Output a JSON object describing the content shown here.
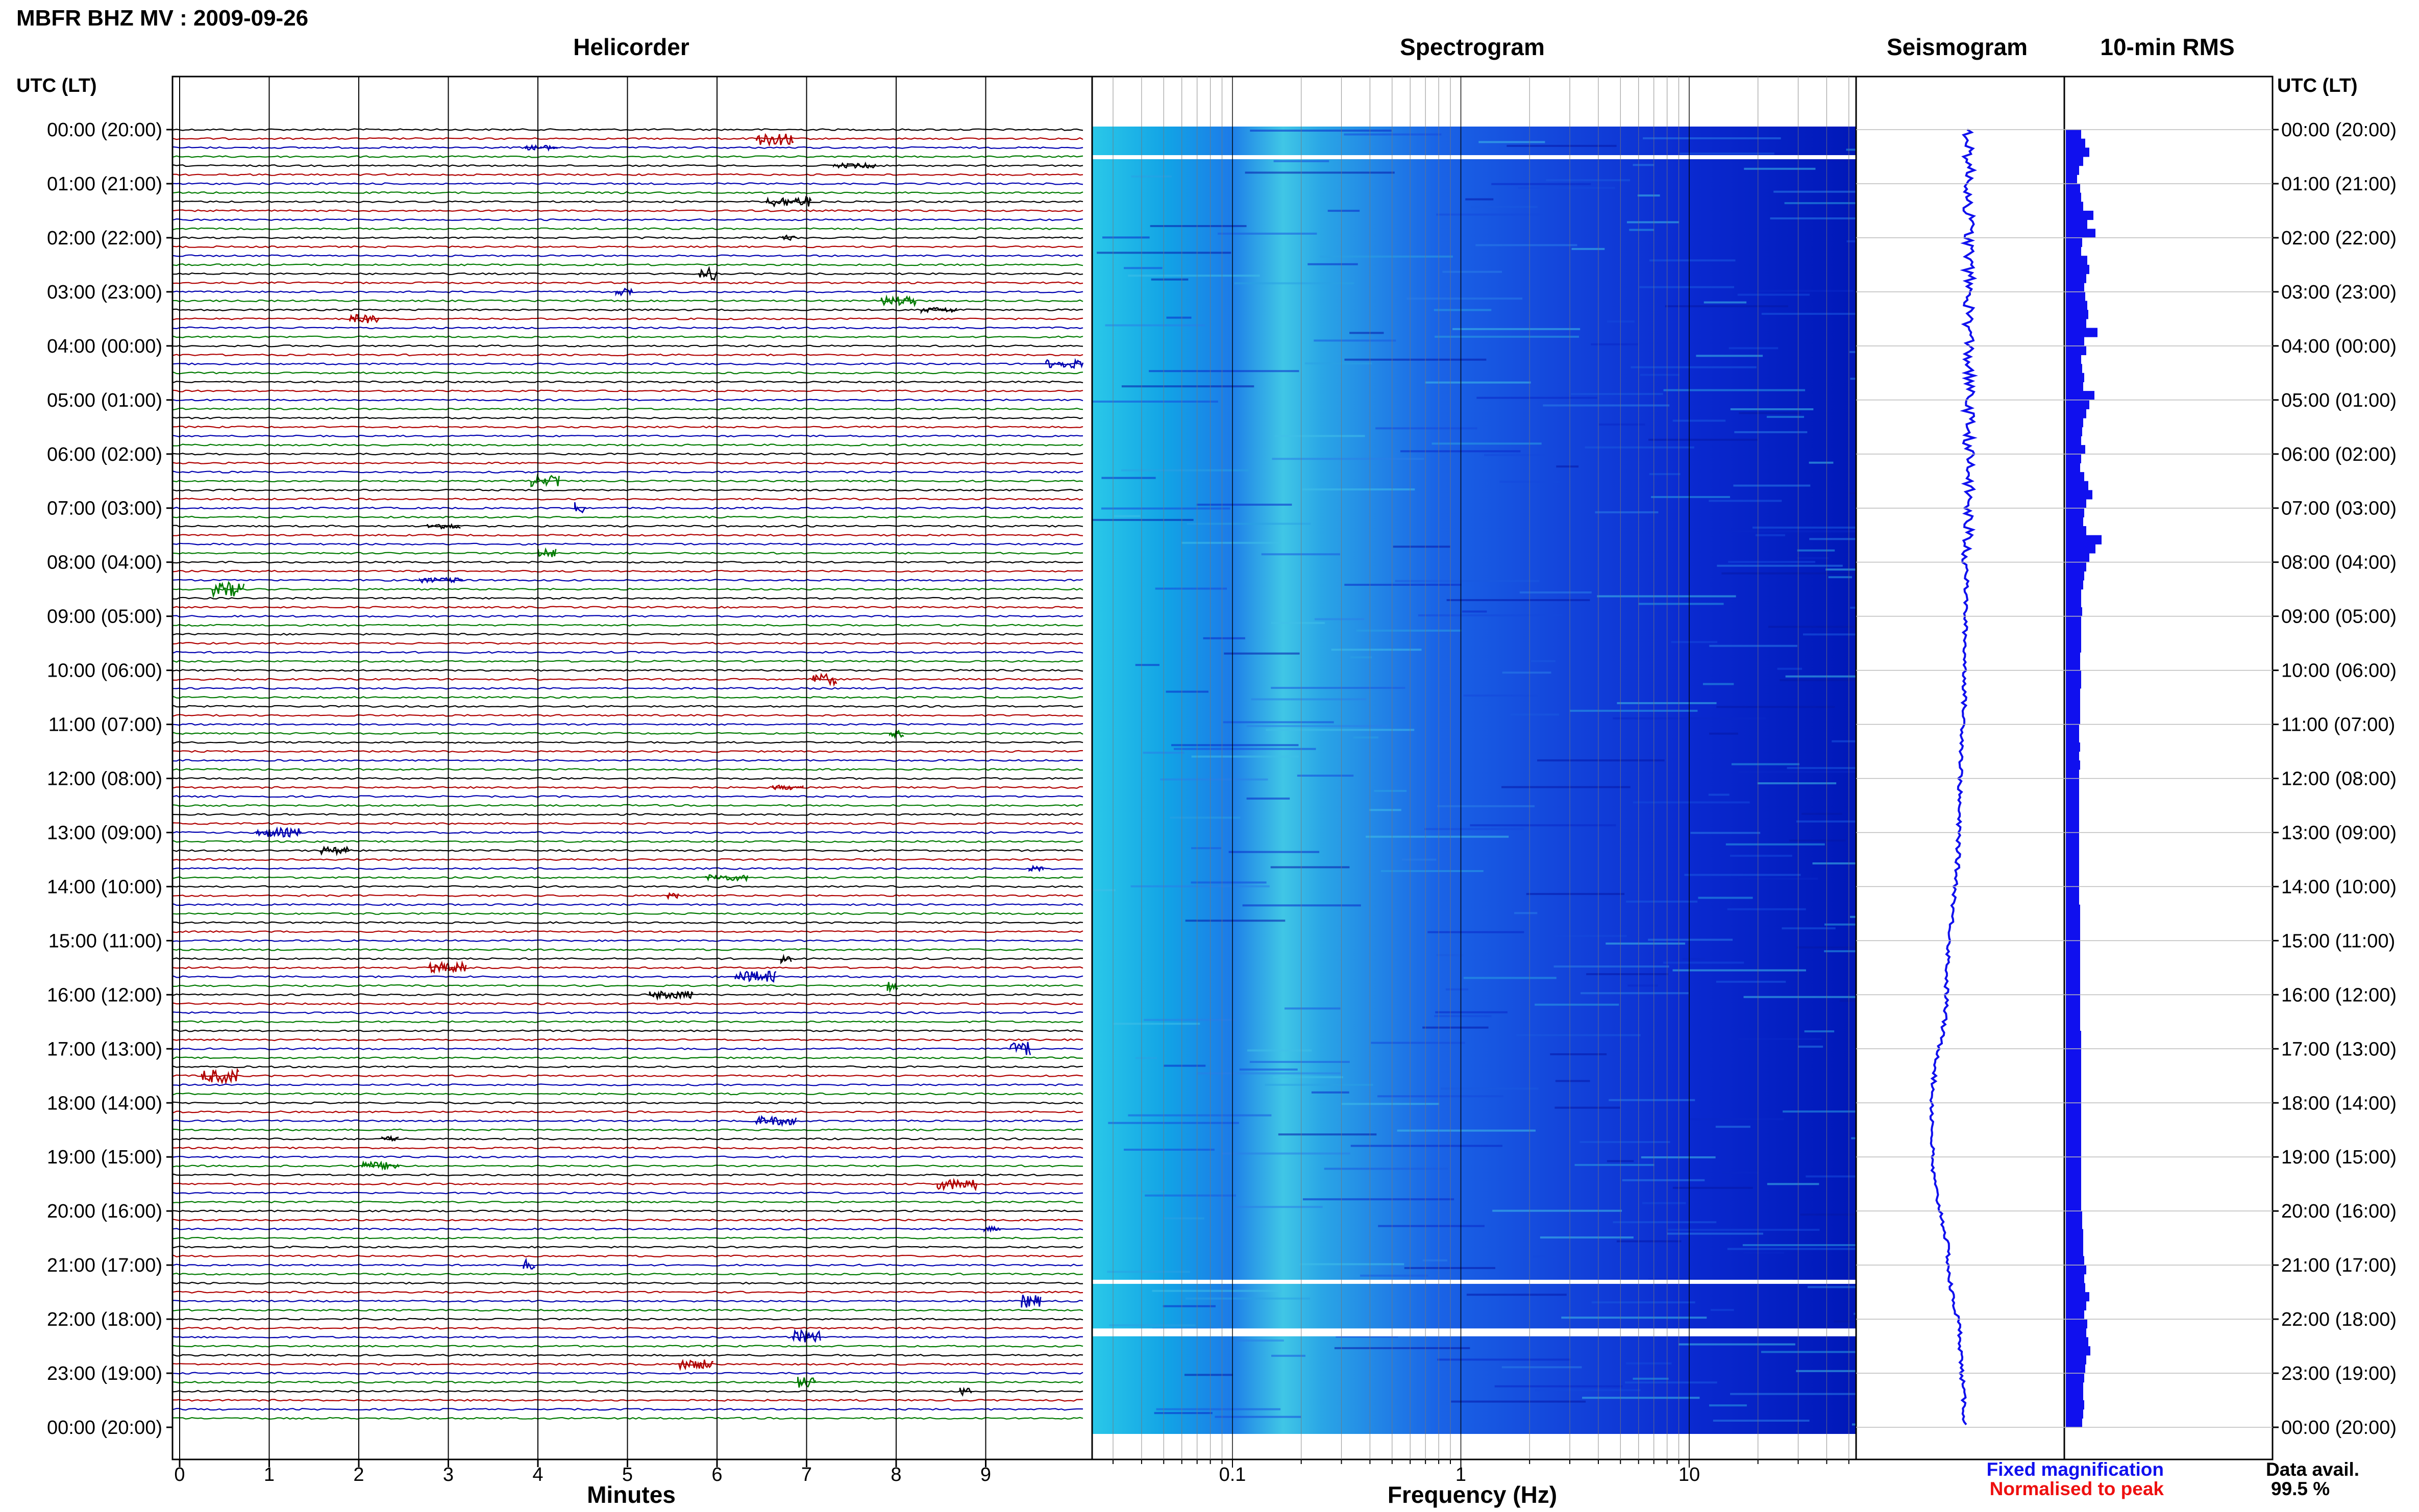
{
  "header": {
    "station_title": "MBFR BHZ MV : 2009-09-26",
    "utc_label": "UTC (LT)"
  },
  "panels": {
    "helicorder": "Helicorder",
    "spectrogram": "Spectrogram",
    "seismogram": "Seismogram",
    "rms": "10-min RMS"
  },
  "x_axes": {
    "helicorder_label": "Minutes",
    "spectrogram_label": "Frequency (Hz)"
  },
  "legend": {
    "fixed": "Fixed magnification",
    "normalised": "Normalised to peak",
    "avail_label": "Data avail.",
    "avail_value": "99.5 %"
  },
  "colors": {
    "fixed": "#1010ee",
    "normalised": "#ee1010",
    "trace_cycle": [
      "#000000",
      "#b00000",
      "#0000b0",
      "#007a00"
    ]
  },
  "chart_data": {
    "type": "helicorder",
    "time_ticks": [
      "00:00 (20:00)",
      "01:00 (21:00)",
      "02:00 (22:00)",
      "03:00 (23:00)",
      "04:00 (00:00)",
      "05:00 (01:00)",
      "06:00 (02:00)",
      "07:00 (03:00)",
      "08:00 (04:00)",
      "09:00 (05:00)",
      "10:00 (06:00)",
      "11:00 (07:00)",
      "12:00 (08:00)",
      "13:00 (09:00)",
      "14:00 (10:00)",
      "15:00 (11:00)",
      "16:00 (12:00)",
      "17:00 (13:00)",
      "18:00 (14:00)",
      "19:00 (15:00)",
      "20:00 (16:00)",
      "21:00 (17:00)",
      "22:00 (18:00)",
      "23:00 (19:00)",
      "00:00 (20:00)"
    ],
    "minute_ticks": [
      "0",
      "1",
      "2",
      "3",
      "4",
      "5",
      "6",
      "7",
      "8",
      "9"
    ],
    "minute_range": [
      0,
      10
    ],
    "frequency_ticks": [
      "0.1",
      "1",
      "10"
    ],
    "frequency_range_hz": [
      0.02,
      50
    ],
    "log_frequency": true,
    "hours": 24,
    "traces_per_hour": 6,
    "seismogram_drift": [
      {
        "hour": 0,
        "offset": 0.1
      },
      {
        "hour": 6,
        "offset": 0.1
      },
      {
        "hour": 10,
        "offset": 0.0
      },
      {
        "hour": 13,
        "offset": -0.15
      },
      {
        "hour": 16,
        "offset": -0.45
      },
      {
        "hour": 18,
        "offset": -0.8
      },
      {
        "hour": 19,
        "offset": -0.8
      },
      {
        "hour": 21,
        "offset": -0.4
      },
      {
        "hour": 22.5,
        "offset": -0.1
      },
      {
        "hour": 24,
        "offset": 0.0
      }
    ],
    "rms_values": [
      0.3,
      0.38,
      0.46,
      0.34,
      0.26,
      0.22,
      0.28,
      0.3,
      0.34,
      0.54,
      0.42,
      0.58,
      0.32,
      0.3,
      0.42,
      0.46,
      0.4,
      0.36,
      0.38,
      0.42,
      0.44,
      0.4,
      0.62,
      0.36,
      0.4,
      0.3,
      0.32,
      0.36,
      0.34,
      0.56,
      0.46,
      0.4,
      0.34,
      0.32,
      0.3,
      0.38,
      0.3,
      0.28,
      0.36,
      0.44,
      0.52,
      0.4,
      0.36,
      0.34,
      0.4,
      0.7,
      0.58,
      0.46,
      0.4,
      0.36,
      0.34,
      0.3,
      0.3,
      0.32,
      0.3,
      0.3,
      0.3,
      0.3,
      0.28,
      0.28,
      0.3,
      0.3,
      0.28,
      0.28,
      0.28,
      0.28,
      0.26,
      0.26,
      0.28,
      0.26,
      0.28,
      0.26,
      0.26,
      0.26,
      0.26,
      0.26,
      0.26,
      0.26,
      0.26,
      0.26,
      0.26,
      0.26,
      0.26,
      0.26,
      0.26,
      0.26,
      0.28,
      0.28,
      0.28,
      0.28,
      0.28,
      0.28,
      0.28,
      0.28,
      0.28,
      0.28,
      0.28,
      0.28,
      0.28,
      0.28,
      0.3,
      0.3,
      0.3,
      0.3,
      0.3,
      0.3,
      0.3,
      0.3,
      0.3,
      0.3,
      0.3,
      0.3,
      0.3,
      0.3,
      0.3,
      0.3,
      0.3,
      0.3,
      0.3,
      0.3,
      0.32,
      0.32,
      0.34,
      0.34,
      0.34,
      0.36,
      0.4,
      0.36,
      0.38,
      0.46,
      0.4,
      0.36,
      0.42,
      0.4,
      0.44,
      0.48,
      0.4,
      0.38,
      0.36,
      0.34,
      0.34,
      0.36,
      0.34,
      0.32
    ]
  }
}
